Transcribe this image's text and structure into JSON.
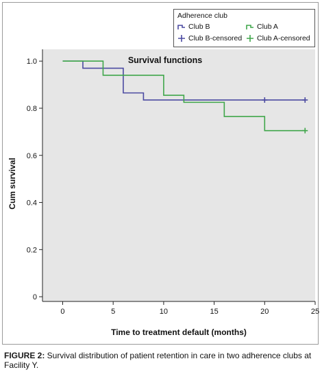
{
  "chart_data": {
    "type": "line",
    "title": "Survival functions",
    "xlabel": "Time to treatment default (months)",
    "ylabel": "Cum survival",
    "xlim": [
      -2,
      25
    ],
    "ylim": [
      -0.02,
      1.05
    ],
    "x_ticks": [
      0,
      5,
      10,
      15,
      20,
      25
    ],
    "y_ticks": [
      0,
      0.2,
      0.4,
      0.6,
      0.8,
      1.0
    ],
    "x_tick_labels": [
      "0",
      "5",
      "10",
      "15",
      "20",
      "25"
    ],
    "y_tick_labels": [
      "0",
      "0.2",
      "0.4",
      "0.6",
      "0.8",
      "1.0"
    ],
    "step": true,
    "legend": {
      "title": "Adherence club",
      "position": "top-right",
      "entries": [
        {
          "label": "Club B",
          "kind": "step",
          "series": 0
        },
        {
          "label": "Club A",
          "kind": "step",
          "series": 1
        },
        {
          "label": "Club B-censored",
          "kind": "censor",
          "series": 0
        },
        {
          "label": "Club A-censored",
          "kind": "censor",
          "series": 1
        }
      ]
    },
    "series": [
      {
        "name": "Club B",
        "color": "#4b4aa1",
        "points": [
          [
            0,
            1.0
          ],
          [
            2,
            0.97
          ],
          [
            6,
            0.865
          ],
          [
            8,
            0.835
          ],
          [
            24,
            0.835
          ]
        ],
        "censored": [
          [
            20,
            0.835
          ],
          [
            24,
            0.835
          ]
        ]
      },
      {
        "name": "Club A",
        "color": "#3fa64a",
        "points": [
          [
            0,
            1.0
          ],
          [
            4,
            0.94
          ],
          [
            10,
            0.855
          ],
          [
            12,
            0.825
          ],
          [
            16,
            0.765
          ],
          [
            20,
            0.705
          ],
          [
            24,
            0.705
          ]
        ],
        "censored": [
          [
            24,
            0.705
          ]
        ]
      }
    ]
  },
  "plot": {
    "background": "#e6e6e6"
  },
  "caption": {
    "label": "FIGURE 2:",
    "text": " Survival distribution of patient retention in care in two adherence clubs at Facility Y."
  }
}
